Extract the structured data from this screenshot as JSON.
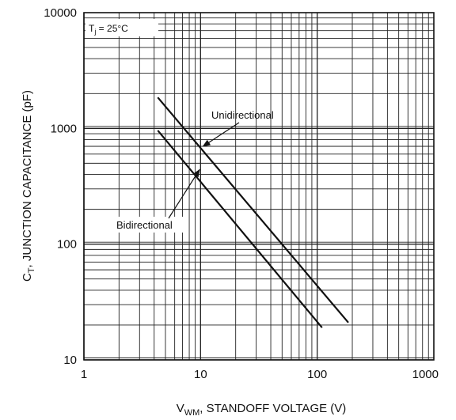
{
  "chart_data": {
    "type": "line",
    "title": "",
    "xlabel": {
      "main": "V",
      "sub": "WM",
      "rest": ", STANDOFF VOLTAGE (V)"
    },
    "ylabel": {
      "main": "C",
      "sub": "T",
      "rest": ", JUNCTION CAPACITANCE (pF)"
    },
    "x_scale": "log",
    "y_scale": "log",
    "xlim": [
      1,
      1000
    ],
    "ylim": [
      10,
      10000
    ],
    "x_ticks": [
      1,
      10,
      100,
      1000
    ],
    "x_tick_labels": [
      "1",
      "10",
      "100",
      "1000"
    ],
    "y_ticks": [
      10,
      100,
      1000,
      10000
    ],
    "y_tick_labels": [
      "10",
      "100",
      "1000",
      "10000"
    ],
    "grid": true,
    "series": [
      {
        "name": "Unidirectional",
        "x": [
          4.3,
          185
        ],
        "y": [
          1850,
          21
        ]
      },
      {
        "name": "Bidirectional",
        "x": [
          4.3,
          110
        ],
        "y": [
          960,
          19
        ]
      }
    ],
    "annotations": [
      {
        "text": "Unidirectional",
        "points_to": [
          10.5,
          700
        ]
      },
      {
        "text": "Bidirectional",
        "points_to": [
          9.8,
          440
        ]
      }
    ],
    "condition": {
      "main": "T",
      "sub": "j",
      "rest": " = 25°C"
    }
  }
}
